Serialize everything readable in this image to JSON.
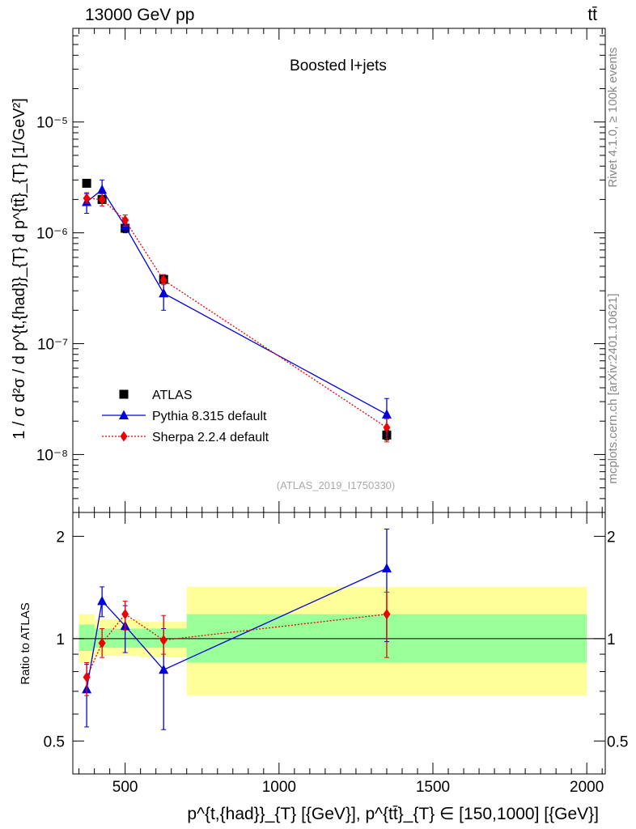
{
  "header": {
    "energy_label": "13000 GeV pp",
    "process_label": "tt̄"
  },
  "side_labels": {
    "rivet": "Rivet 4.1.0, ≥ 100k events",
    "mcplots": "mcplots.cern.ch [arXiv:2401.10621]"
  },
  "colors": {
    "data": "#000000",
    "pythia": "#0000dd",
    "sherpa": "#ee0000",
    "band_inner": "#99ff99",
    "band_outer": "#ffff99"
  },
  "chart_data": [
    {
      "type": "line",
      "scale": "log",
      "title": "Boosted l+jets",
      "watermark": "(ATLAS_2019_I1750330)",
      "ylabel": "1 / σ d²σ / d p^{t,{had}}_{T} d p^{tt̄}_{T} [1/GeV²]",
      "ylim": [
        3e-09,
        7e-05
      ],
      "xlim": [
        330,
        2060
      ],
      "ytick_labels": [
        "10⁻⁸",
        "10⁻⁷",
        "10⁻⁶",
        "10⁻⁵"
      ],
      "ytick_values": [
        1e-08,
        1e-07,
        1e-06,
        1e-05
      ],
      "legend": [
        "ATLAS",
        "Pythia 8.315 default",
        "Sherpa 2.2.4 default"
      ],
      "legend_position": "lower-left",
      "series": [
        {
          "name": "ATLAS",
          "marker": "square",
          "x": [
            375,
            425,
            500,
            625,
            1350
          ],
          "y": [
            2.8e-06,
            2e-06,
            1.1e-06,
            3.8e-07,
            1.5e-08
          ],
          "yerr_lo": [
            2.6e-06,
            1.85e-06,
            1.03e-06,
            3.5e-07,
            1.35e-08
          ],
          "yerr_hi": [
            3e-06,
            2.15e-06,
            1.17e-06,
            4.1e-07,
            1.65e-08
          ]
        },
        {
          "name": "Pythia 8.315 default",
          "marker": "triangle",
          "x": [
            375,
            425,
            500,
            625,
            1350
          ],
          "y": [
            1.9e-06,
            2.45e-06,
            1.15e-06,
            2.85e-07,
            2.3e-08
          ],
          "yerr_lo": [
            1.5e-06,
            2e-06,
            1e-06,
            2e-07,
            1.5e-08
          ],
          "yerr_hi": [
            2.3e-06,
            3e-06,
            1.3e-06,
            4e-07,
            3.2e-08
          ]
        },
        {
          "name": "Sherpa 2.2.4 default",
          "marker": "diamond",
          "x": [
            375,
            425,
            500,
            625,
            1350
          ],
          "y": [
            2.05e-06,
            2e-06,
            1.3e-06,
            3.75e-07,
            1.75e-08
          ],
          "yerr_lo": [
            1.85e-06,
            1.75e-06,
            1.15e-06,
            3.4e-07,
            1.3e-08
          ],
          "yerr_hi": [
            2.25e-06,
            2.25e-06,
            1.45e-06,
            4.2e-07,
            2.1e-08
          ]
        }
      ]
    },
    {
      "type": "line",
      "scale": "log",
      "ylabel": "Ratio to ATLAS",
      "xlabel": "p^{t,{had}}_{T} [{GeV}], p^{tt̄}_{T} ∈ [150,1000] [{GeV}]",
      "ylim": [
        0.4,
        2.35
      ],
      "xlim": [
        330,
        2060
      ],
      "xticks": [
        500,
        1000,
        1500,
        2000
      ],
      "yticks": [
        0.5,
        1,
        2
      ],
      "reference_line": 1,
      "bands": [
        {
          "x": [
            350,
            400
          ],
          "inner": [
            0.92,
            1.1
          ],
          "outer": [
            0.85,
            1.18
          ]
        },
        {
          "x": [
            400,
            450
          ],
          "inner": [
            0.94,
            1.07
          ],
          "outer": [
            0.89,
            1.14
          ]
        },
        {
          "x": [
            450,
            550
          ],
          "inner": [
            0.94,
            1.07
          ],
          "outer": [
            0.89,
            1.14
          ]
        },
        {
          "x": [
            550,
            700
          ],
          "inner": [
            0.94,
            1.07
          ],
          "outer": [
            0.88,
            1.12
          ]
        },
        {
          "x": [
            700,
            2000
          ],
          "inner": [
            0.85,
            1.18
          ],
          "outer": [
            0.68,
            1.42
          ]
        }
      ],
      "series": [
        {
          "name": "Pythia 8.315 default",
          "x": [
            375,
            425,
            500,
            625,
            1350
          ],
          "y": [
            0.71,
            1.29,
            1.09,
            0.81,
            1.61
          ],
          "yerr_lo": [
            0.55,
            1.16,
            0.91,
            0.54,
            0.98
          ],
          "yerr_hi": [
            0.84,
            1.42,
            1.25,
            1.07,
            2.1
          ]
        },
        {
          "name": "Sherpa 2.2.4 default",
          "x": [
            375,
            425,
            500,
            625,
            1350
          ],
          "y": [
            0.77,
            0.97,
            1.18,
            0.99,
            1.18
          ],
          "yerr_lo": [
            0.68,
            0.88,
            1.06,
            0.9,
            0.88
          ],
          "yerr_hi": [
            0.85,
            1.07,
            1.29,
            1.17,
            1.37
          ]
        }
      ]
    }
  ]
}
